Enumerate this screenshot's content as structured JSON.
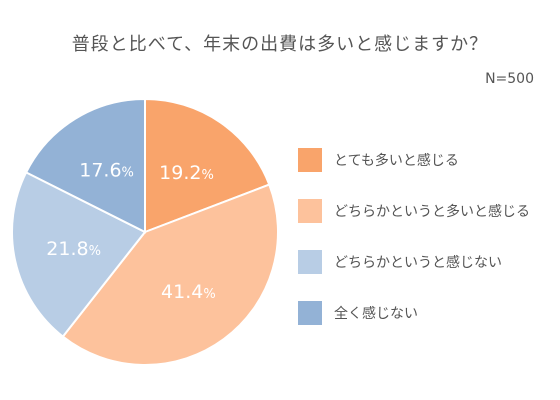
{
  "title": "普段と比べて、年末の出費は多いと感じますか？",
  "sample_size": "N=500",
  "chart_data": {
    "type": "pie",
    "title": "普段と比べて、年末の出費は多いと感じますか？",
    "categories": [
      "とても多いと感じる",
      "どちらかというと多いと感じる",
      "どちらかというと感じない",
      "全く感じない"
    ],
    "values": [
      19.2,
      41.4,
      21.8,
      17.6
    ],
    "value_labels": [
      "19.2%",
      "41.4%",
      "21.8%",
      "17.6%"
    ],
    "colors": [
      "#F9A46B",
      "#FDC29C",
      "#B8CDE5",
      "#93B2D6"
    ],
    "legend_position": "right"
  }
}
